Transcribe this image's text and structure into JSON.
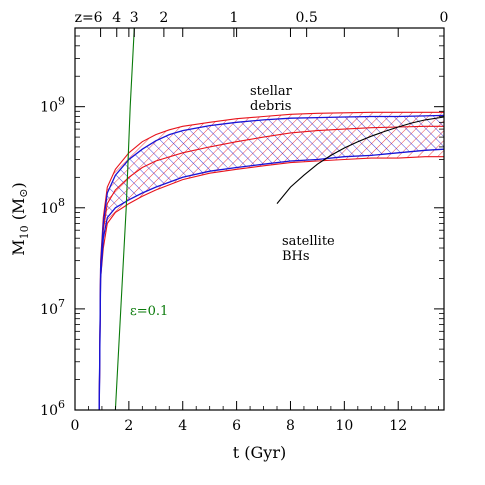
{
  "chart_data": {
    "type": "line",
    "xlabel": "t (Gyr)",
    "ylabel_main": "M",
    "ylabel_sub": "10",
    "ylabel_unit": "(M",
    "ylabel_unit_close": ")",
    "xlim": [
      0,
      13.7
    ],
    "ylim": [
      1000000,
      6000000000
    ],
    "yscale": "log",
    "x_ticks": [
      0,
      2,
      4,
      6,
      8,
      10,
      12
    ],
    "x_tick_labels": [
      "0",
      "2",
      "4",
      "6",
      "8",
      "10",
      "12"
    ],
    "y_ticks": [
      1000000,
      10000000,
      100000000,
      1000000000
    ],
    "y_tick_bases": [
      "10",
      "10",
      "10",
      "10"
    ],
    "y_tick_exps": [
      "6",
      "7",
      "8",
      "9"
    ],
    "top_axis": {
      "labels": [
        "z=6",
        "4",
        "3",
        "2",
        "1",
        "0.5",
        "0"
      ],
      "t_positions": [
        0.95,
        1.55,
        2.2,
        3.3,
        5.9,
        8.6,
        13.7
      ]
    },
    "annotations": {
      "stellar_debris": [
        "stellar",
        "debris"
      ],
      "satellite_bhs": [
        "satellite",
        "BHs"
      ],
      "epsilon": "ε=0.1"
    },
    "series": [
      {
        "color": "#e8141c",
        "band_upper": [
          [
            0.9,
            1000000
          ],
          [
            0.95,
            30000000
          ],
          [
            1.05,
            80000000
          ],
          [
            1.2,
            160000000
          ],
          [
            1.5,
            240000000
          ],
          [
            2.0,
            350000000
          ],
          [
            2.5,
            450000000
          ],
          [
            3.0,
            530000000
          ],
          [
            3.5,
            590000000
          ],
          [
            4.0,
            640000000
          ],
          [
            5.0,
            700000000
          ],
          [
            6.0,
            760000000
          ],
          [
            7.0,
            800000000
          ],
          [
            8.0,
            840000000
          ],
          [
            9.0,
            860000000
          ],
          [
            10.0,
            870000000
          ],
          [
            11.0,
            880000000
          ],
          [
            12.0,
            880000000
          ],
          [
            13.0,
            880000000
          ],
          [
            13.7,
            880000000
          ]
        ],
        "band_lower": [
          [
            0.9,
            1000000
          ],
          [
            0.95,
            20000000
          ],
          [
            1.05,
            40000000
          ],
          [
            1.2,
            70000000
          ],
          [
            1.5,
            90000000
          ],
          [
            2.0,
            110000000
          ],
          [
            2.5,
            130000000
          ],
          [
            3.0,
            150000000
          ],
          [
            4.0,
            190000000
          ],
          [
            5.0,
            220000000
          ],
          [
            6.0,
            240000000
          ],
          [
            7.0,
            260000000
          ],
          [
            8.0,
            280000000
          ],
          [
            9.0,
            290000000
          ],
          [
            10.0,
            300000000
          ],
          [
            11.0,
            310000000
          ],
          [
            12.0,
            310000000
          ],
          [
            13.0,
            320000000
          ],
          [
            13.7,
            320000000
          ]
        ],
        "median": [
          [
            0.9,
            1000000
          ],
          [
            0.95,
            25000000
          ],
          [
            1.05,
            60000000
          ],
          [
            1.2,
            110000000
          ],
          [
            1.5,
            150000000
          ],
          [
            2.0,
            200000000
          ],
          [
            2.5,
            250000000
          ],
          [
            3.0,
            290000000
          ],
          [
            4.0,
            350000000
          ],
          [
            5.0,
            400000000
          ],
          [
            6.0,
            450000000
          ],
          [
            7.0,
            500000000
          ],
          [
            8.0,
            550000000
          ],
          [
            9.0,
            580000000
          ],
          [
            10.0,
            600000000
          ],
          [
            11.0,
            620000000
          ],
          [
            12.0,
            630000000
          ],
          [
            13.0,
            640000000
          ],
          [
            13.7,
            640000000
          ]
        ]
      },
      {
        "color": "#1a14d6",
        "band_upper": [
          [
            0.9,
            1000000
          ],
          [
            0.95,
            25000000
          ],
          [
            1.05,
            70000000
          ],
          [
            1.2,
            140000000
          ],
          [
            1.5,
            210000000
          ],
          [
            2.0,
            300000000
          ],
          [
            2.5,
            380000000
          ],
          [
            3.0,
            460000000
          ],
          [
            3.5,
            530000000
          ],
          [
            4.0,
            580000000
          ],
          [
            5.0,
            650000000
          ],
          [
            6.0,
            700000000
          ],
          [
            7.0,
            740000000
          ],
          [
            8.0,
            770000000
          ],
          [
            9.0,
            780000000
          ],
          [
            10.0,
            790000000
          ],
          [
            11.0,
            800000000
          ],
          [
            12.0,
            800000000
          ],
          [
            13.0,
            810000000
          ],
          [
            13.7,
            820000000
          ]
        ],
        "band_lower": [
          [
            0.9,
            1000000
          ],
          [
            0.95,
            20000000
          ],
          [
            1.05,
            50000000
          ],
          [
            1.2,
            80000000
          ],
          [
            1.5,
            100000000
          ],
          [
            2.0,
            120000000
          ],
          [
            2.5,
            140000000
          ],
          [
            3.0,
            160000000
          ],
          [
            4.0,
            200000000
          ],
          [
            5.0,
            230000000
          ],
          [
            6.0,
            250000000
          ],
          [
            7.0,
            270000000
          ],
          [
            8.0,
            290000000
          ],
          [
            9.0,
            300000000
          ],
          [
            10.0,
            320000000
          ],
          [
            11.0,
            330000000
          ],
          [
            12.0,
            350000000
          ],
          [
            13.0,
            370000000
          ],
          [
            13.7,
            380000000
          ]
        ]
      },
      {
        "color": "#000000",
        "points": [
          [
            7.5,
            110000000
          ],
          [
            8.0,
            160000000
          ],
          [
            8.5,
            210000000
          ],
          [
            9.0,
            270000000
          ],
          [
            9.5,
            330000000
          ],
          [
            10.0,
            390000000
          ],
          [
            10.5,
            450000000
          ],
          [
            11.0,
            510000000
          ],
          [
            11.5,
            570000000
          ],
          [
            12.0,
            630000000
          ],
          [
            12.5,
            690000000
          ],
          [
            13.0,
            740000000
          ],
          [
            13.7,
            790000000
          ]
        ]
      },
      {
        "color": "#0a7a0a",
        "points": [
          [
            1.5,
            1000000
          ],
          [
            1.7,
            10000000
          ],
          [
            1.9,
            100000000
          ],
          [
            2.05,
            1000000000
          ],
          [
            2.2,
            6000000000
          ]
        ]
      }
    ]
  }
}
